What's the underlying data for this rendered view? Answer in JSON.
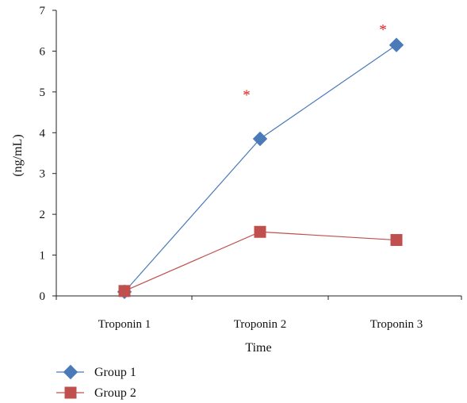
{
  "chart_data": {
    "type": "line",
    "categories": [
      "Troponin 1",
      "Troponin 2",
      "Troponin 3"
    ],
    "series": [
      {
        "name": "Group 1",
        "values": [
          0.1,
          3.85,
          6.15
        ],
        "color": "#4a7ab8",
        "marker": "diamond"
      },
      {
        "name": "Group 2",
        "values": [
          0.12,
          1.57,
          1.37
        ],
        "color": "#c0504d",
        "marker": "square"
      }
    ],
    "xlabel": "Time",
    "ylabel": "(ng/mL)",
    "ylim": [
      0,
      7
    ],
    "yticks": [
      "0",
      "1",
      "2",
      "3",
      "4",
      "5",
      "6",
      "7"
    ],
    "grid": false,
    "legend_position": "bottom-left",
    "annotations": [
      {
        "text": "*",
        "category": "Troponin 2",
        "y": 5.0,
        "color": "#e02020"
      },
      {
        "text": "*",
        "category": "Troponin 3",
        "y": 6.6,
        "color": "#e02020"
      }
    ]
  }
}
